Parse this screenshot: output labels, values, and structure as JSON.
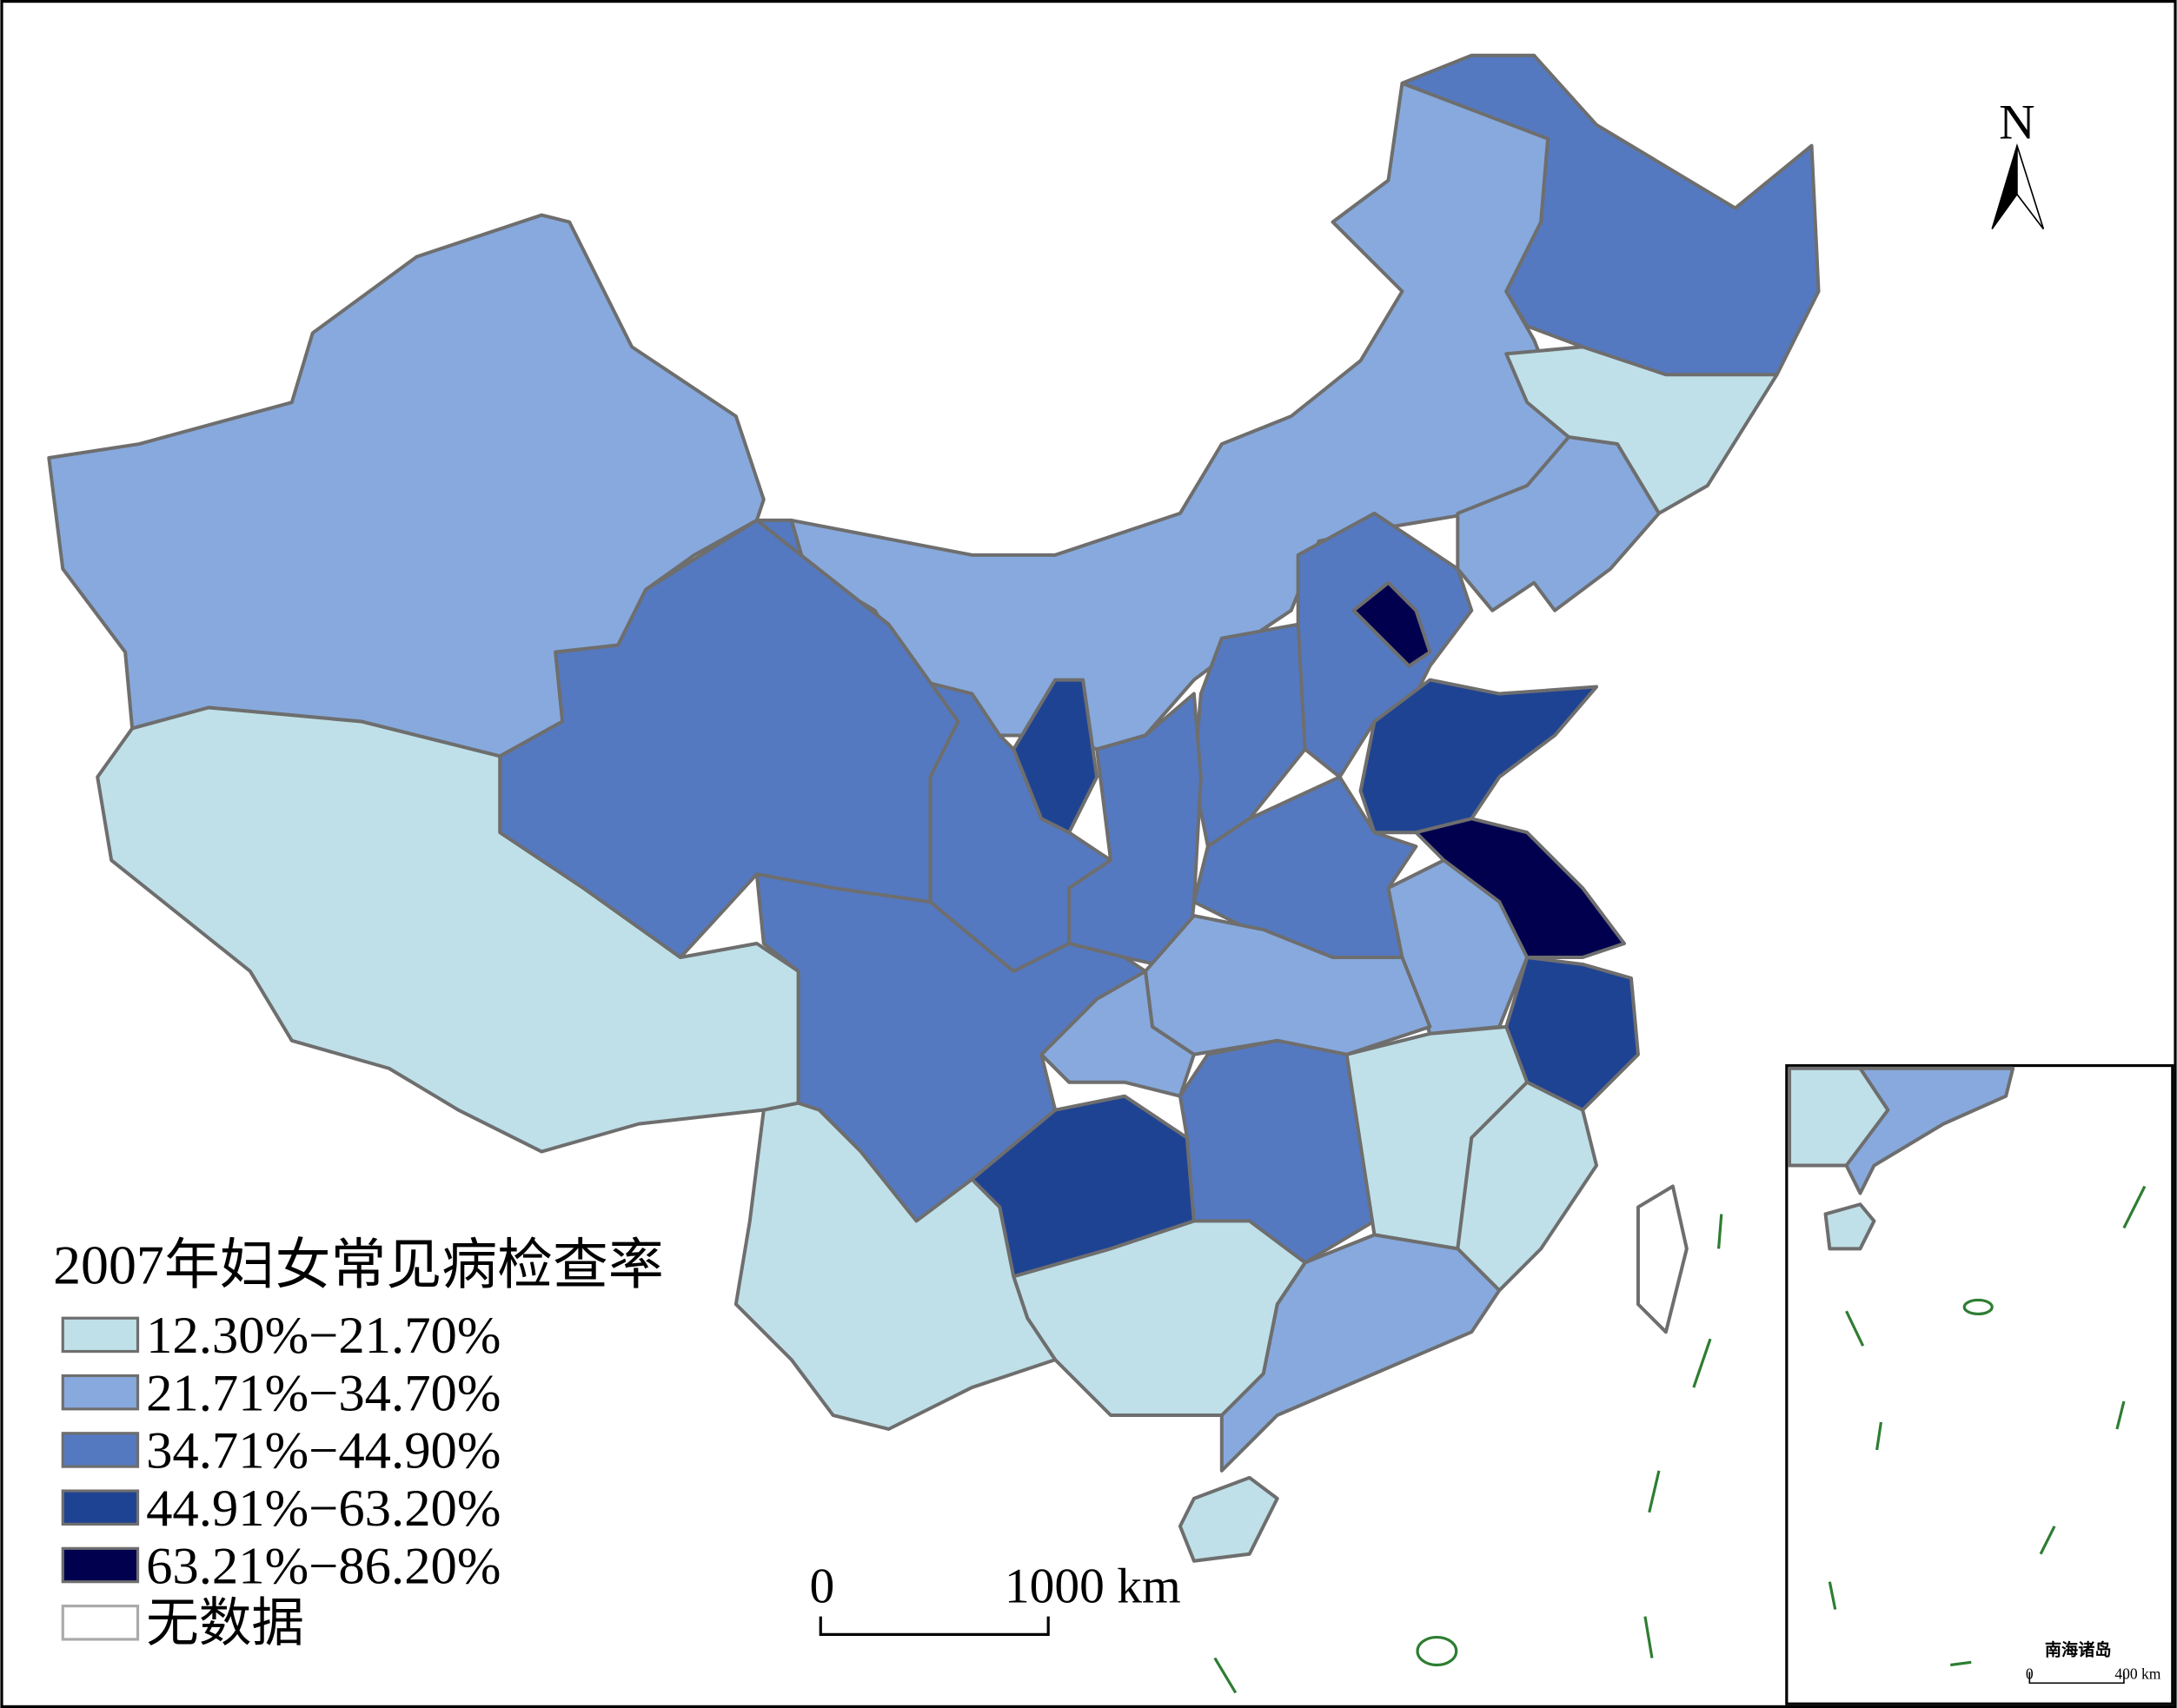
{
  "map": {
    "legend": {
      "title": "2007年妇女常见病检查率",
      "items": [
        {
          "label": "12.30%−21.70%",
          "color": "#bfe0e8"
        },
        {
          "label": "21.71%−34.70%",
          "color": "#87a9dd"
        },
        {
          "label": "34.71%−44.90%",
          "color": "#5479c1"
        },
        {
          "label": "44.91%−63.20%",
          "color": "#1f4393"
        },
        {
          "label": "63.21%−86.20%",
          "color": "#00004f"
        },
        {
          "label": "无数据",
          "color": "#ffffff"
        }
      ]
    },
    "scale_bar": {
      "labels": [
        "0",
        "1000 km"
      ]
    },
    "north_arrow": "N",
    "inset": {
      "title": "南海诸岛",
      "scale_labels": [
        "0",
        "400 km"
      ]
    }
  }
}
